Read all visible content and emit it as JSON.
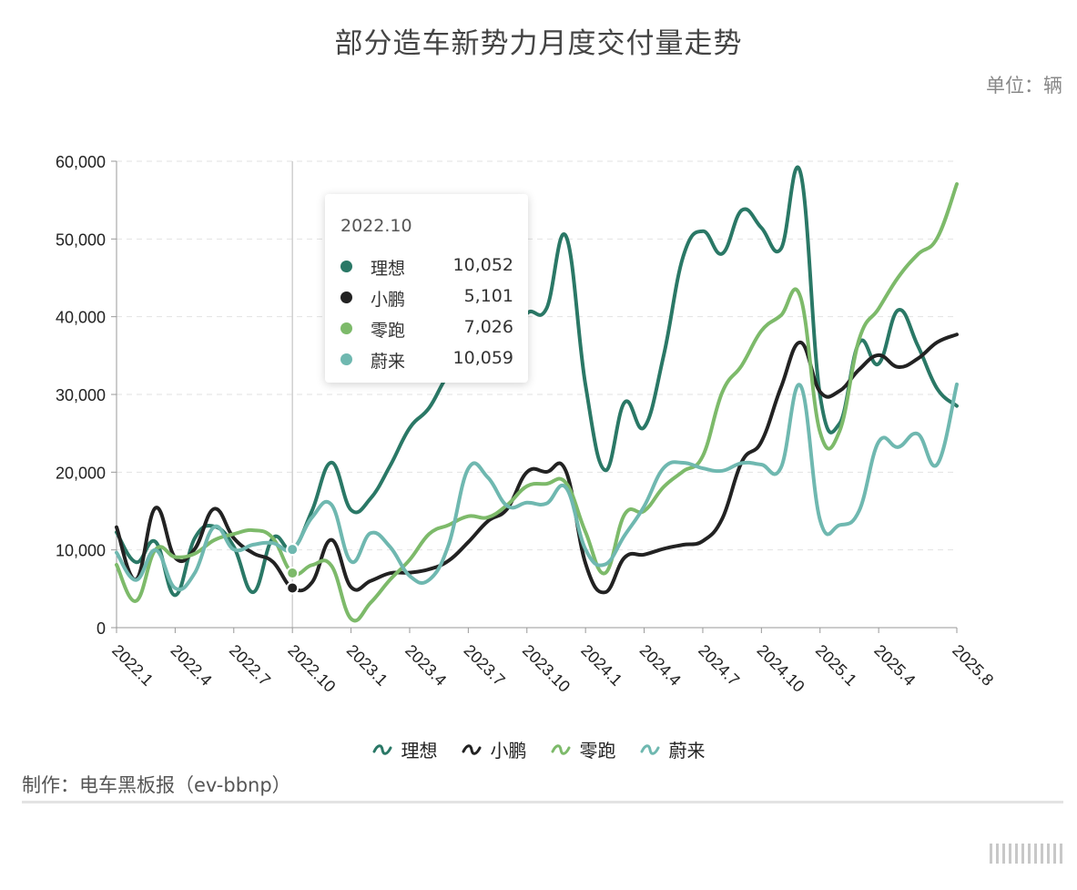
{
  "title": "部分造车新势力月度交付量走势",
  "unit": "单位：辆",
  "credit": "制作：电车黑板报（ev-bbnp）",
  "colors": {
    "lixiang": "#2a7866",
    "xpeng": "#222222",
    "leapmotor": "#7dba6a",
    "nio": "#6fb8b0",
    "grid": "#e2e2e2",
    "axis": "#999999"
  },
  "tooltip": {
    "title": "2022.10",
    "rows": [
      {
        "name": "理想",
        "value": "10,052",
        "color": "#2a7866"
      },
      {
        "name": "小鹏",
        "value": "5,101",
        "color": "#222222"
      },
      {
        "name": "零跑",
        "value": "7,026",
        "color": "#7dba6a"
      },
      {
        "name": "蔚来",
        "value": "10,059",
        "color": "#6fb8b0"
      }
    ]
  },
  "legend": [
    {
      "name": "理想",
      "color": "#2a7866"
    },
    {
      "name": "小鹏",
      "color": "#222222"
    },
    {
      "name": "零跑",
      "color": "#7dba6a"
    },
    {
      "name": "蔚来",
      "color": "#6fb8b0"
    }
  ],
  "chart_data": {
    "type": "line",
    "title": "部分造车新势力月度交付量走势",
    "xlabel": "",
    "ylabel": "",
    "ylim": [
      0,
      60000
    ],
    "yticks": [
      0,
      10000,
      20000,
      30000,
      40000,
      50000,
      60000
    ],
    "ytick_labels": [
      "0",
      "10,000",
      "20,000",
      "30,000",
      "40,000",
      "50,000",
      "60,000"
    ],
    "xtick_labels": [
      "2022.1",
      "2022.4",
      "2022.7",
      "2022.10",
      "2023.1",
      "2023.4",
      "2023.7",
      "2023.10",
      "2024.1",
      "2024.4",
      "2024.7",
      "2024.10",
      "2025.1",
      "2025.4",
      "2025.8"
    ],
    "grid": true,
    "legend_position": "bottom",
    "highlight": "2022.10",
    "x": [
      "2022.1",
      "2022.2",
      "2022.3",
      "2022.4",
      "2022.5",
      "2022.6",
      "2022.7",
      "2022.8",
      "2022.9",
      "2022.10",
      "2022.11",
      "2022.12",
      "2023.1",
      "2023.2",
      "2023.3",
      "2023.4",
      "2023.5",
      "2023.6",
      "2023.7",
      "2023.8",
      "2023.9",
      "2023.10",
      "2023.11",
      "2023.12",
      "2024.1",
      "2024.2",
      "2024.3",
      "2024.4",
      "2024.5",
      "2024.6",
      "2024.7",
      "2024.8",
      "2024.9",
      "2024.10",
      "2024.11",
      "2024.12",
      "2025.1",
      "2025.2",
      "2025.3",
      "2025.4",
      "2025.5",
      "2025.6",
      "2025.7",
      "2025.8"
    ],
    "series": [
      {
        "name": "理想",
        "color": "#2a7866",
        "values": [
          12268,
          8414,
          11034,
          4167,
          11496,
          13024,
          10422,
          4571,
          11531,
          10052,
          15034,
          21233,
          15141,
          16620,
          20823,
          25681,
          28277,
          32575,
          34134,
          34914,
          36060,
          40422,
          41030,
          50353,
          31165,
          20251,
          28984,
          25787,
          35020,
          47774,
          51000,
          48122,
          53709,
          51443,
          48740,
          58513,
          29927,
          26263,
          36674,
          33939,
          40856,
          36279,
          30731,
          28529
        ]
      },
      {
        "name": "小鹏",
        "color": "#222222",
        "values": [
          12922,
          6225,
          15414,
          9002,
          10125,
          15295,
          11524,
          9578,
          8468,
          5101,
          5811,
          11292,
          5218,
          6010,
          7002,
          7079,
          7506,
          8620,
          11008,
          13690,
          15310,
          20002,
          20041,
          20115,
          8250,
          4545,
          9026,
          9393,
          10146,
          10668,
          11145,
          14036,
          21352,
          23917,
          30895,
          36695,
          30350,
          30453,
          33205,
          35045,
          33525,
          34611,
          36717,
          37709
        ]
      },
      {
        "name": "零跑",
        "color": "#7dba6a",
        "values": [
          8085,
          3435,
          10059,
          9087,
          9521,
          11259,
          12044,
          12525,
          11521,
          7026,
          8045,
          7961,
          1139,
          3198,
          6172,
          8726,
          12058,
          13209,
          14335,
          14190,
          15800,
          18202,
          18508,
          18618,
          12277,
          7005,
          14567,
          15005,
          18108,
          20116,
          22094,
          30305,
          33767,
          38177,
          40169,
          42517,
          25170,
          25274,
          37095,
          41039,
          45067,
          48006,
          50129,
          57066
        ]
      },
      {
        "name": "蔚来",
        "color": "#6fb8b0",
        "values": [
          9652,
          6131,
          9985,
          5074,
          7024,
          12961,
          10052,
          10677,
          10878,
          10059,
          14178,
          15815,
          8506,
          12157,
          10378,
          6658,
          6155,
          10707,
          20462,
          19329,
          15641,
          16074,
          15959,
          18012,
          10055,
          8132,
          11866,
          15620,
          20544,
          21209,
          20498,
          20176,
          21181,
          20976,
          20575,
          31138,
          13863,
          13192,
          15039,
          23900,
          23231,
          24925,
          21017,
          31305
        ]
      }
    ]
  }
}
